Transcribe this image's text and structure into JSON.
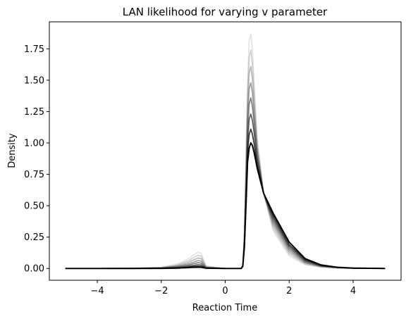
{
  "chart_data": {
    "type": "line",
    "title": "LAN likelihood for varying v parameter",
    "xlabel": "Reaction Time",
    "ylabel": "Density",
    "xlim": [
      -5.5,
      5.5
    ],
    "ylim": [
      -0.094,
      1.965
    ],
    "xticks": [
      -4,
      -2,
      0,
      2,
      4
    ],
    "xtick_labels": [
      "−4",
      "−2",
      "0",
      "2",
      "4"
    ],
    "yticks": [
      0.0,
      0.25,
      0.5,
      0.75,
      1.0,
      1.25,
      1.5,
      1.75
    ],
    "ytick_labels": [
      "0.00",
      "0.25",
      "0.50",
      "0.75",
      "1.00",
      "1.25",
      "1.50",
      "1.75"
    ],
    "grid": false,
    "legend": "none",
    "line_color": "#000000",
    "series_style": "grayscale, light to dark",
    "x": [
      -5.0,
      -4.0,
      -3.0,
      -2.0,
      -1.5,
      -1.2,
      -1.0,
      -0.85,
      -0.75,
      -0.6,
      0.0,
      0.5,
      0.55,
      0.6,
      0.65,
      0.7,
      0.75,
      0.8,
      0.85,
      0.9,
      1.0,
      1.2,
      1.5,
      2.0,
      2.5,
      3.0,
      3.5,
      4.0,
      5.0
    ],
    "series": [
      {
        "values": [
          0,
          0,
          0.001,
          0.01,
          0.035,
          0.07,
          0.105,
          0.13,
          0.12,
          0.02,
          0,
          0,
          0.03,
          0.3,
          0.9,
          1.5,
          1.82,
          1.87,
          1.75,
          1.5,
          1.05,
          0.6,
          0.3,
          0.1,
          0.03,
          0.01,
          0.003,
          0.001,
          0
        ]
      },
      {
        "values": [
          0,
          0,
          0.001,
          0.008,
          0.028,
          0.056,
          0.085,
          0.105,
          0.097,
          0.016,
          0,
          0,
          0.028,
          0.28,
          0.84,
          1.4,
          1.68,
          1.74,
          1.63,
          1.41,
          1.0,
          0.6,
          0.32,
          0.115,
          0.036,
          0.012,
          0.004,
          0.001,
          0
        ]
      },
      {
        "values": [
          0,
          0,
          0.0008,
          0.006,
          0.022,
          0.044,
          0.067,
          0.083,
          0.077,
          0.012,
          0,
          0,
          0.026,
          0.26,
          0.78,
          1.3,
          1.56,
          1.61,
          1.51,
          1.33,
          0.97,
          0.6,
          0.34,
          0.13,
          0.042,
          0.014,
          0.005,
          0.002,
          0
        ]
      },
      {
        "values": [
          0,
          0,
          0.0006,
          0.005,
          0.017,
          0.033,
          0.05,
          0.063,
          0.058,
          0.01,
          0,
          0,
          0.024,
          0.24,
          0.72,
          1.21,
          1.43,
          1.48,
          1.4,
          1.25,
          0.94,
          0.6,
          0.36,
          0.145,
          0.048,
          0.016,
          0.006,
          0.002,
          0
        ]
      },
      {
        "values": [
          0,
          0,
          0.0004,
          0.003,
          0.012,
          0.024,
          0.037,
          0.046,
          0.042,
          0.007,
          0,
          0,
          0.022,
          0.22,
          0.66,
          1.12,
          1.31,
          1.36,
          1.29,
          1.17,
          0.9,
          0.6,
          0.38,
          0.16,
          0.055,
          0.019,
          0.007,
          0.002,
          0
        ]
      },
      {
        "values": [
          0,
          0,
          0.0003,
          0.002,
          0.008,
          0.016,
          0.024,
          0.03,
          0.028,
          0.005,
          0,
          0,
          0.02,
          0.2,
          0.6,
          1.02,
          1.19,
          1.23,
          1.18,
          1.09,
          0.87,
          0.6,
          0.4,
          0.175,
          0.062,
          0.022,
          0.008,
          0.003,
          0
        ]
      },
      {
        "values": [
          0,
          0,
          0.0002,
          0.0015,
          0.005,
          0.01,
          0.015,
          0.018,
          0.017,
          0.003,
          0,
          0,
          0.018,
          0.18,
          0.55,
          0.93,
          1.07,
          1.11,
          1.07,
          1.0,
          0.83,
          0.6,
          0.42,
          0.19,
          0.07,
          0.025,
          0.009,
          0.003,
          0
        ]
      },
      {
        "values": [
          0,
          0,
          0.0001,
          0.001,
          0.003,
          0.006,
          0.009,
          0.01,
          0.01,
          0.002,
          0,
          0,
          0.017,
          0.17,
          0.5,
          0.85,
          0.96,
          1.0,
          0.98,
          0.93,
          0.8,
          0.6,
          0.44,
          0.21,
          0.078,
          0.028,
          0.01,
          0.003,
          0
        ]
      }
    ]
  }
}
